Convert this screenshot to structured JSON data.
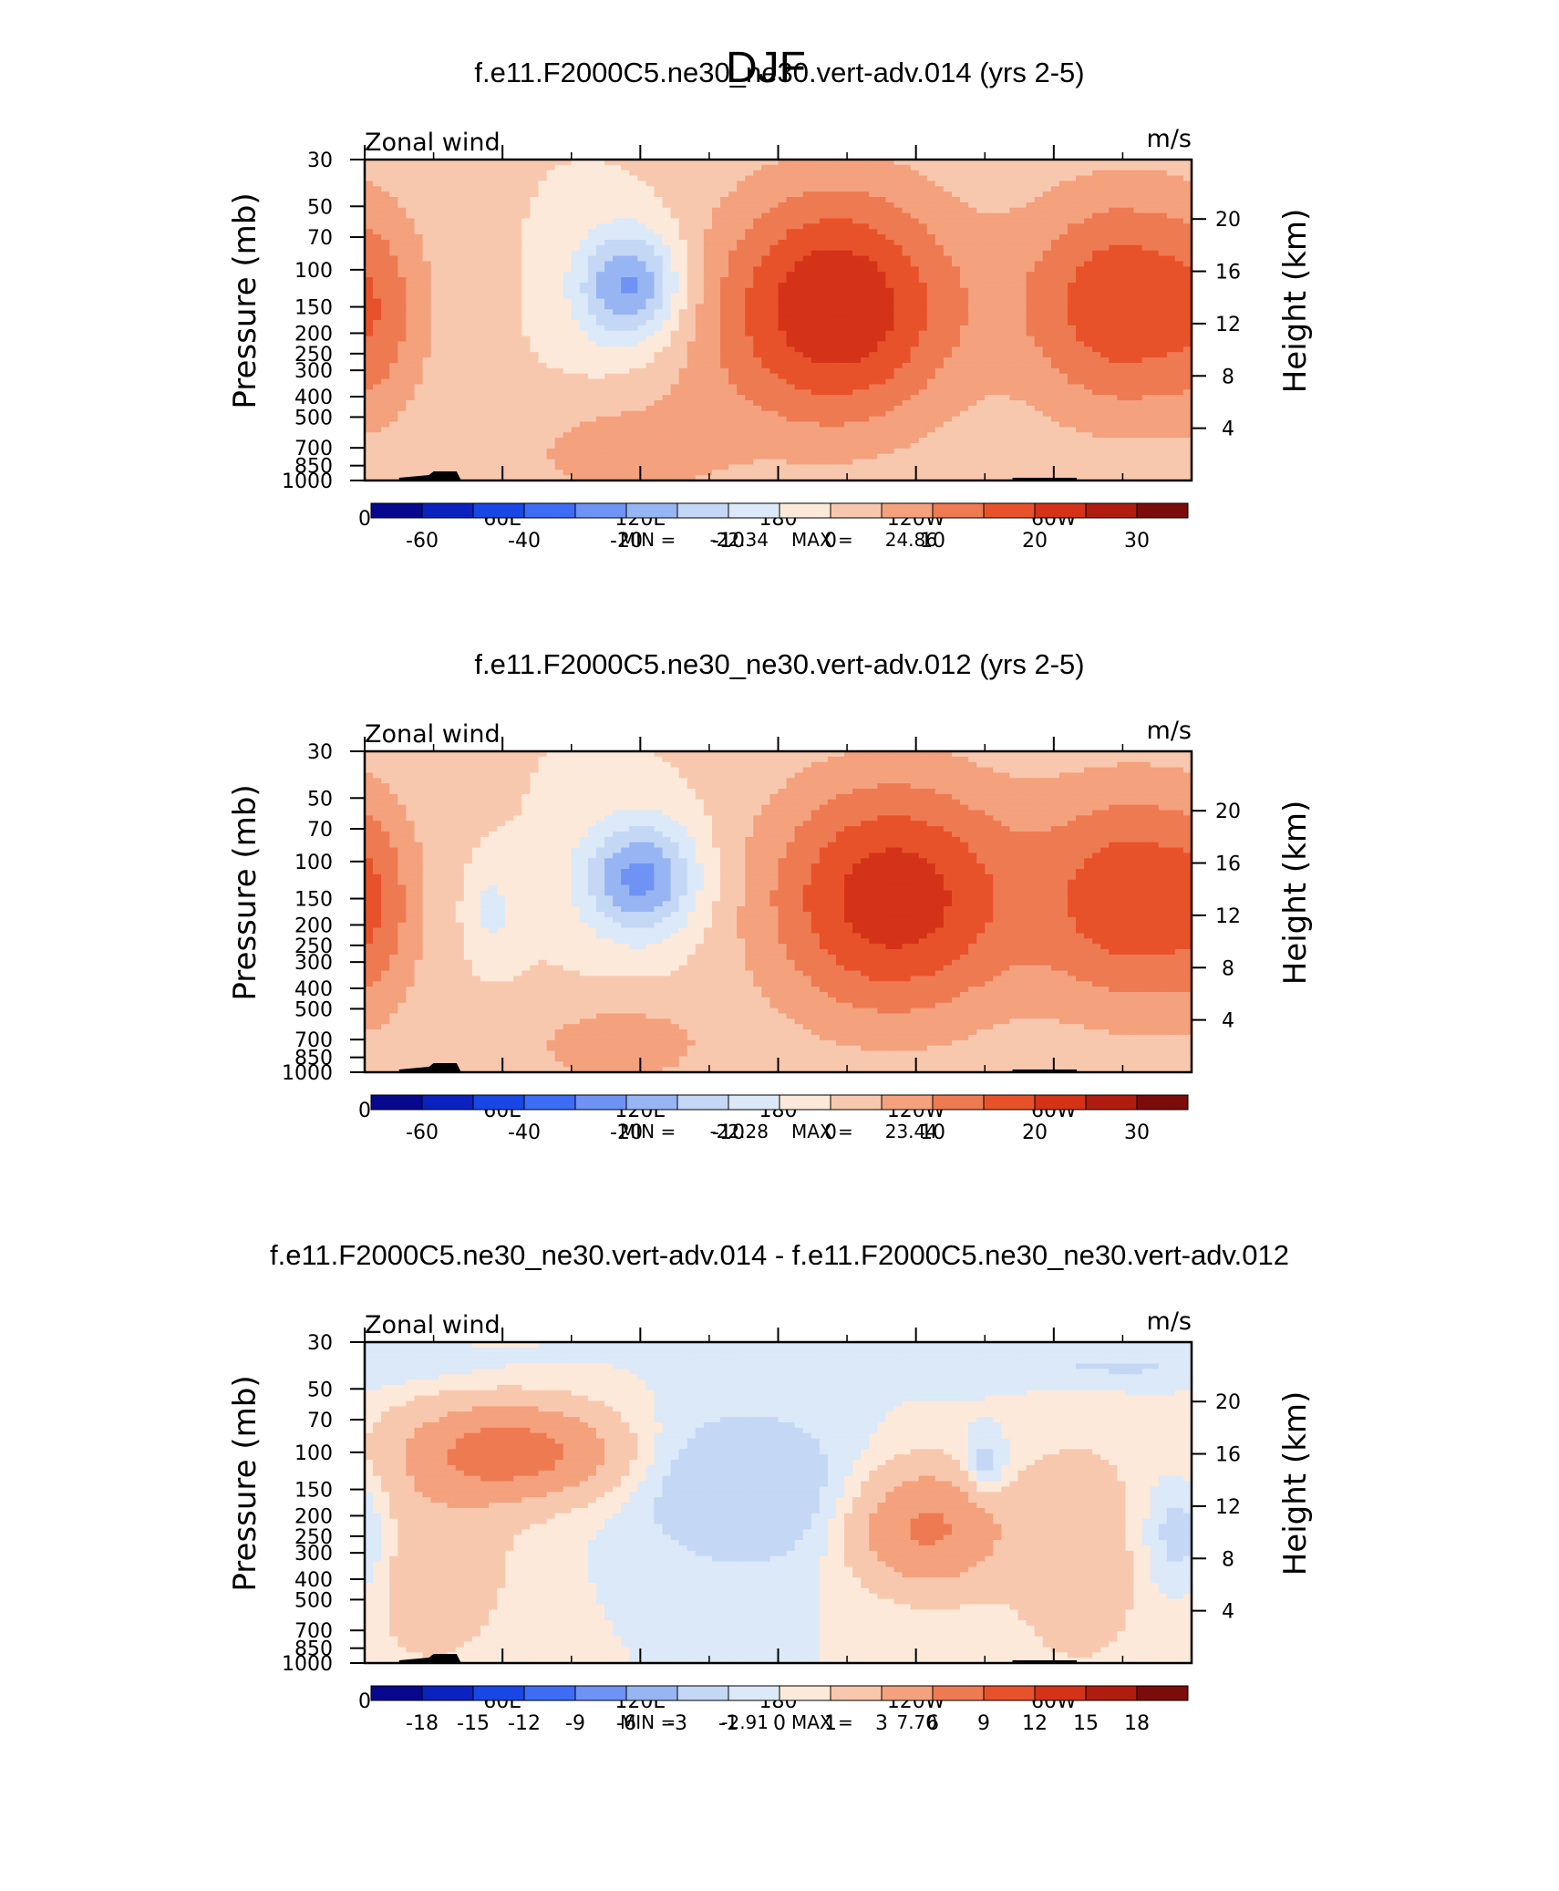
{
  "figure": {
    "title": "DJF"
  },
  "chart_data": [
    {
      "type": "heatmap",
      "title": "f.e11.F2000C5.ne30_ne30.vert-adv.014 (yrs 2-5)",
      "left_label": "Zonal wind",
      "right_label": "m/s",
      "ylabel": "Pressure (mb)",
      "y2label": "Height (km)",
      "xticks": [
        "0",
        "60E",
        "120E",
        "180",
        "120W",
        "60W"
      ],
      "yticks": [
        "30",
        "50",
        "70",
        "100",
        "150",
        "200",
        "250",
        "300",
        "400",
        "500",
        "700",
        "850",
        "1000"
      ],
      "y2ticks": [
        "20",
        "16",
        "12",
        "8",
        "4"
      ],
      "stats": {
        "min_label": "MIN =",
        "min": "-22.34",
        "max_label": "MAX =",
        "max": "24.86"
      },
      "levels": [
        -70,
        -60,
        -50,
        -40,
        -30,
        -20,
        -15,
        -10,
        -5,
        0,
        5,
        10,
        15,
        20,
        25,
        30,
        35
      ],
      "colorbar_labels": [
        "-60",
        "-40",
        "-20",
        "-10",
        "0",
        "10",
        "20",
        "30"
      ],
      "ylim": [
        1000,
        30
      ],
      "xlim": [
        0,
        360
      ],
      "blobs": [
        {
          "lon": 205,
          "p": 150,
          "w": 38,
          "h": 0.95,
          "v": 24.86
        },
        {
          "lon": 330,
          "p": 145,
          "w": 32,
          "h": 0.9,
          "v": 19
        },
        {
          "lon": 8,
          "p": 170,
          "w": 14,
          "h": 0.9,
          "v": 5
        },
        {
          "lon": 115,
          "p": 120,
          "w": 16,
          "h": 0.45,
          "v": -22.34
        },
        {
          "lon": 110,
          "p": 750,
          "w": 30,
          "h": 0.35,
          "v": 8
        },
        {
          "lon": 140,
          "p": 400,
          "w": 25,
          "h": 0.7,
          "v": 2
        }
      ]
    },
    {
      "type": "heatmap",
      "title": "f.e11.F2000C5.ne30_ne30.vert-adv.012 (yrs 2-5)",
      "left_label": "Zonal wind",
      "right_label": "m/s",
      "ylabel": "Pressure (mb)",
      "y2label": "Height (km)",
      "xticks": [
        "0",
        "60E",
        "120E",
        "180",
        "120W",
        "60W"
      ],
      "yticks": [
        "30",
        "50",
        "70",
        "100",
        "150",
        "200",
        "250",
        "300",
        "400",
        "500",
        "700",
        "850",
        "1000"
      ],
      "y2ticks": [
        "20",
        "16",
        "12",
        "8",
        "4"
      ],
      "stats": {
        "min_label": "MIN =",
        "min": "-22.28",
        "max_label": "MAX =",
        "max": "23.44"
      },
      "levels": [
        -70,
        -60,
        -50,
        -40,
        -30,
        -20,
        -15,
        -10,
        -5,
        0,
        5,
        10,
        15,
        20,
        25,
        30,
        35
      ],
      "colorbar_labels": [
        "-60",
        "-40",
        "-20",
        "-10",
        "0",
        "10",
        "20",
        "30"
      ],
      "ylim": [
        1000,
        30
      ],
      "xlim": [
        0,
        360
      ],
      "blobs": [
        {
          "lon": 230,
          "p": 150,
          "w": 40,
          "h": 0.95,
          "v": 23.44
        },
        {
          "lon": 335,
          "p": 150,
          "w": 30,
          "h": 0.9,
          "v": 18
        },
        {
          "lon": 5,
          "p": 170,
          "w": 12,
          "h": 0.9,
          "v": 5
        },
        {
          "lon": 120,
          "p": 120,
          "w": 18,
          "h": 0.45,
          "v": -22.28
        },
        {
          "lon": 55,
          "p": 170,
          "w": 8,
          "h": 0.35,
          "v": -7
        },
        {
          "lon": 110,
          "p": 750,
          "w": 30,
          "h": 0.35,
          "v": 8
        }
      ]
    },
    {
      "type": "heatmap",
      "title": "f.e11.F2000C5.ne30_ne30.vert-adv.014 - f.e11.F2000C5.ne30_ne30.vert-adv.012",
      "left_label": "Zonal wind",
      "right_label": "m/s",
      "ylabel": "Pressure (mb)",
      "y2label": "Height (km)",
      "xticks": [
        "0",
        "60E",
        "120E",
        "180",
        "120W",
        "60W"
      ],
      "yticks": [
        "30",
        "50",
        "70",
        "100",
        "150",
        "200",
        "250",
        "300",
        "400",
        "500",
        "700",
        "850",
        "1000"
      ],
      "y2ticks": [
        "20",
        "16",
        "12",
        "8",
        "4"
      ],
      "stats": {
        "min_label": "MIN =",
        "min": "-2.91",
        "max_label": "MAX =",
        "max": "7.70"
      },
      "levels": [
        -21,
        -18,
        -15,
        -12,
        -9,
        -6,
        -3,
        -1,
        0,
        1,
        3,
        6,
        9,
        12,
        15,
        18,
        21
      ],
      "colorbar_labels": [
        "-18",
        "-15",
        "-12",
        "-9",
        "-6",
        "-3",
        "-1",
        "0",
        "1",
        "3",
        "6",
        "9",
        "12",
        "15",
        "18"
      ],
      "ylim": [
        1000,
        30
      ],
      "xlim": [
        0,
        360
      ],
      "blobs": [
        {
          "lon": 65,
          "p": 100,
          "w": 30,
          "h": 0.35,
          "v": 7.7
        },
        {
          "lon": 245,
          "p": 230,
          "w": 22,
          "h": 0.45,
          "v": 6.5
        },
        {
          "lon": 30,
          "p": 300,
          "w": 25,
          "h": 0.9,
          "v": 2.2
        },
        {
          "lon": 310,
          "p": 300,
          "w": 22,
          "h": 0.9,
          "v": 2.2
        },
        {
          "lon": 165,
          "p": 150,
          "w": 30,
          "h": 0.55,
          "v": -2.91
        },
        {
          "lon": 270,
          "p": 120,
          "w": 7,
          "h": 0.25,
          "v": -2.6
        },
        {
          "lon": 355,
          "p": 250,
          "w": 12,
          "h": 0.5,
          "v": -2.5
        },
        {
          "lon": 320,
          "p": 40,
          "w": 60,
          "h": 0.15,
          "v": -1.2
        }
      ]
    }
  ]
}
